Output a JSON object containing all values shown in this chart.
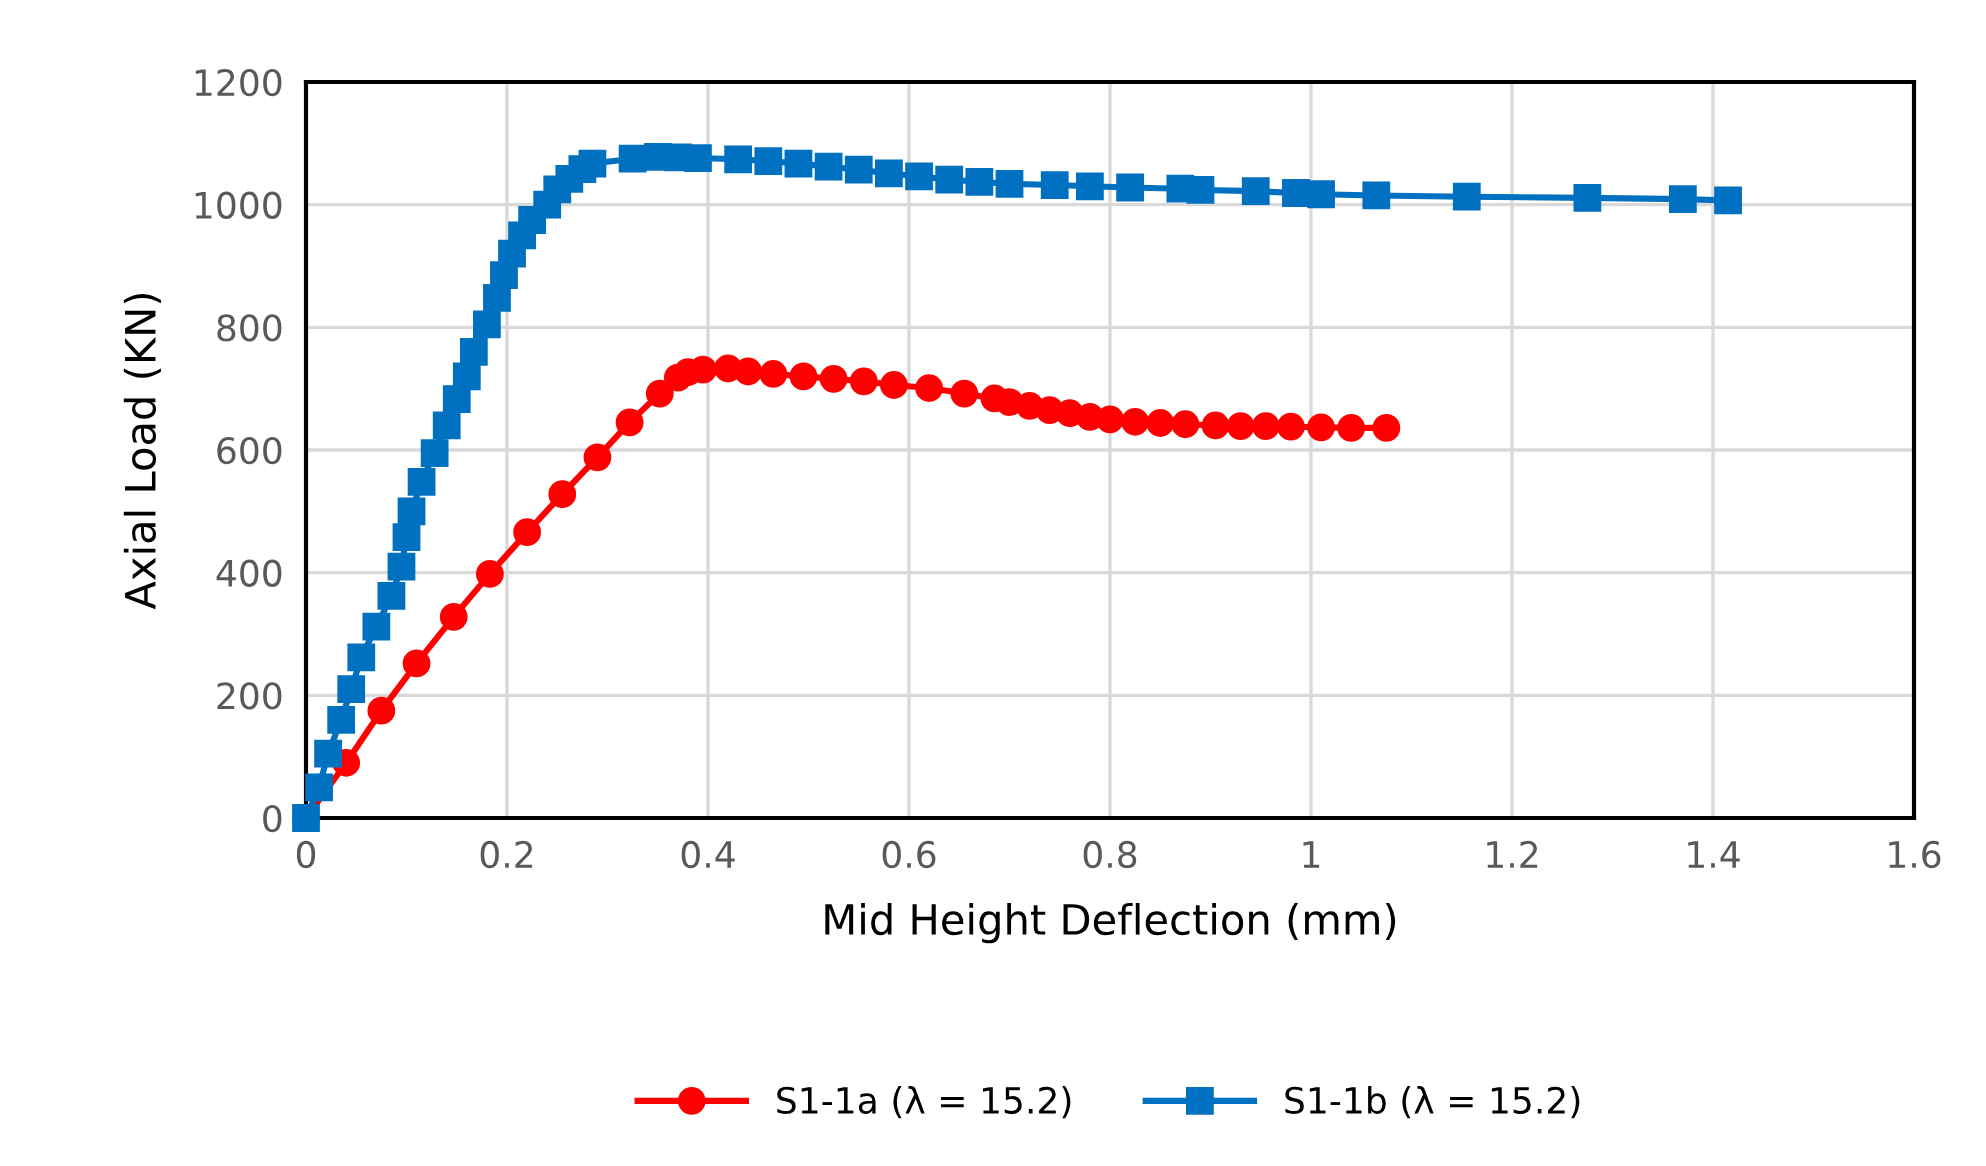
{
  "chart_data": {
    "type": "line",
    "xlabel": "Mid Height Deflection (mm)",
    "ylabel": "Axial Load (KN)",
    "xlim": [
      0,
      1.6
    ],
    "xticks": [
      0,
      0.2,
      0.4,
      0.6,
      0.8,
      1,
      1.2,
      1.4,
      1.6
    ],
    "ylim": [
      0,
      1200
    ],
    "yticks": [
      0,
      200,
      400,
      600,
      800,
      1000,
      1200
    ],
    "grid": true,
    "legend": "bottom",
    "series": [
      {
        "name": "S1-1a (λ = 15.2)",
        "color": "#ff0000",
        "marker": "circle",
        "x": [
          0,
          0.04,
          0.075,
          0.11,
          0.147,
          0.183,
          0.22,
          0.255,
          0.29,
          0.322,
          0.352,
          0.37,
          0.38,
          0.395,
          0.42,
          0.44,
          0.465,
          0.495,
          0.525,
          0.555,
          0.585,
          0.62,
          0.655,
          0.685,
          0.7,
          0.72,
          0.74,
          0.76,
          0.78,
          0.8,
          0.825,
          0.85,
          0.875,
          0.905,
          0.93,
          0.955,
          0.98,
          1.01,
          1.04,
          1.075
        ],
        "values": [
          0,
          90,
          175,
          252,
          328,
          398,
          466,
          528,
          588,
          645,
          692,
          718,
          727,
          731,
          733,
          728,
          724,
          720,
          716,
          712,
          706,
          701,
          692,
          684,
          678,
          672,
          665,
          660,
          654,
          650,
          646,
          644,
          642,
          640,
          639,
          639,
          638,
          637,
          636,
          636
        ]
      },
      {
        "name": "S1-1b (λ = 15.2)",
        "color": "#0070c0",
        "marker": "square",
        "x": [
          0,
          0.013,
          0.022,
          0.035,
          0.045,
          0.055,
          0.07,
          0.085,
          0.095,
          0.1,
          0.105,
          0.115,
          0.128,
          0.14,
          0.15,
          0.16,
          0.167,
          0.18,
          0.19,
          0.197,
          0.205,
          0.215,
          0.225,
          0.24,
          0.25,
          0.262,
          0.275,
          0.285,
          0.325,
          0.35,
          0.37,
          0.39,
          0.43,
          0.46,
          0.49,
          0.52,
          0.55,
          0.58,
          0.61,
          0.64,
          0.67,
          0.7,
          0.745,
          0.78,
          0.82,
          0.87,
          0.89,
          0.945,
          0.985,
          1.01,
          1.065,
          1.155,
          1.275,
          1.37,
          1.415
        ],
        "values": [
          0,
          50,
          105,
          160,
          210,
          262,
          312,
          362,
          410,
          458,
          500,
          548,
          595,
          640,
          683,
          720,
          760,
          805,
          848,
          885,
          920,
          950,
          975,
          1000,
          1025,
          1042,
          1058,
          1067,
          1075,
          1078,
          1077,
          1076,
          1074,
          1071,
          1067,
          1062,
          1057,
          1051,
          1046,
          1041,
          1037,
          1034,
          1032,
          1030,
          1028,
          1026,
          1024,
          1022,
          1019,
          1017,
          1015,
          1013,
          1011,
          1009,
          1007
        ]
      }
    ]
  }
}
